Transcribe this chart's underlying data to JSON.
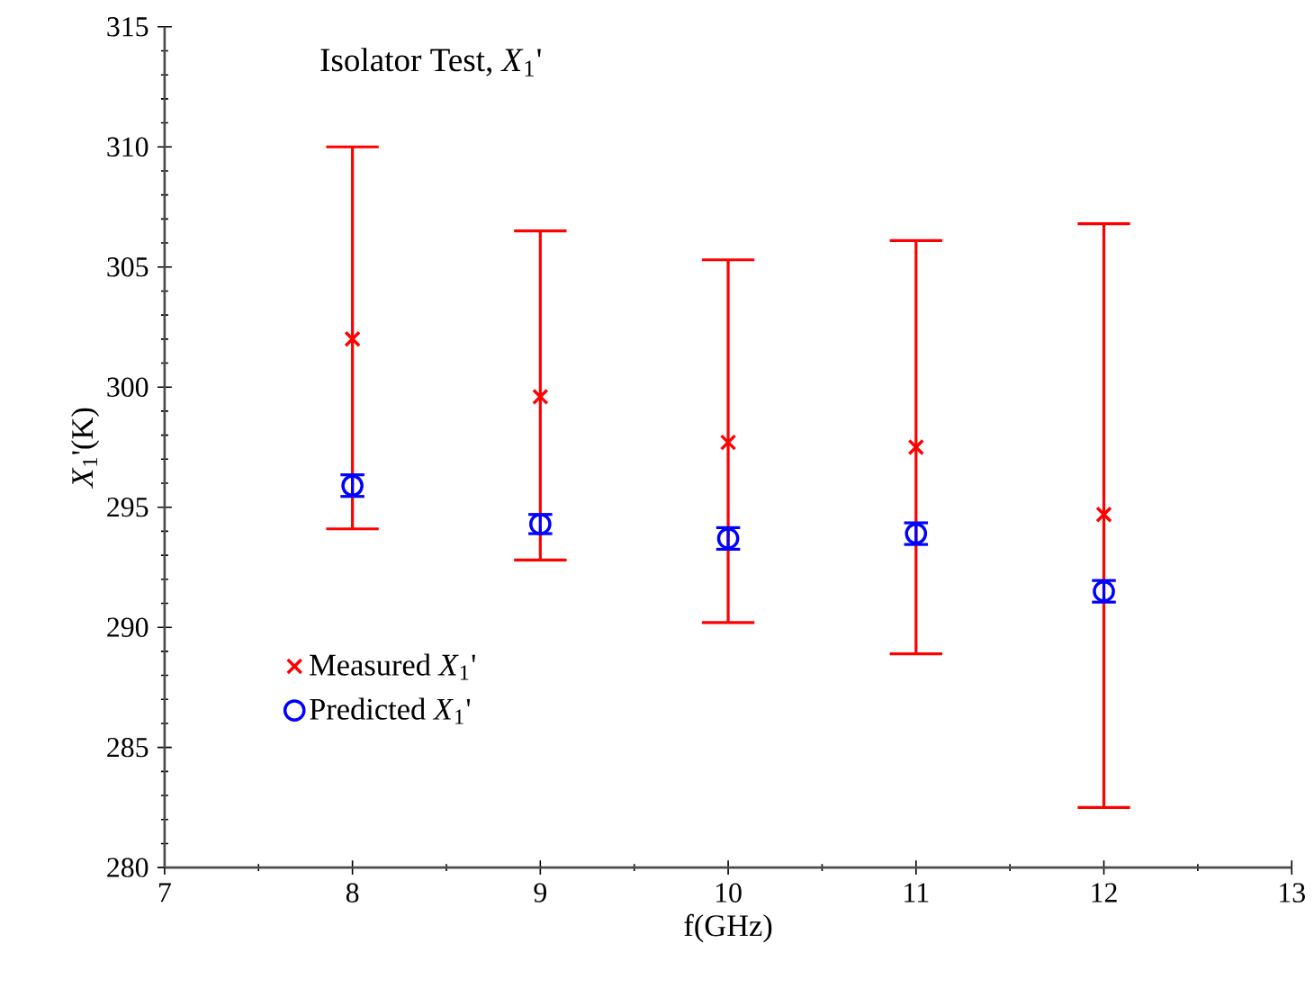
{
  "chart_data": {
    "type": "scatter",
    "title": "Isolator Test, *X*$_{1}$'",
    "xlabel": "f(GHz)",
    "ylabel": "*X*$_{1}$'(K)",
    "x": [
      8,
      9,
      10,
      11,
      12
    ],
    "series": [
      {
        "name": "Measured *X*$_{1}$'",
        "color": "#ff0000",
        "marker": "cross",
        "values": [
          302.0,
          299.6,
          297.7,
          297.5,
          294.7
        ],
        "errors": [
          [
            294.1,
            310.0
          ],
          [
            292.8,
            306.5
          ],
          [
            290.2,
            305.3
          ],
          [
            288.9,
            306.1
          ],
          [
            282.5,
            306.8
          ]
        ]
      },
      {
        "name": "Predicted *X*$_{1}$'",
        "color": "#0000ff",
        "marker": "circle",
        "values": [
          295.9,
          294.3,
          293.7,
          293.9,
          291.5
        ],
        "errors": [
          0.45,
          0.4,
          0.45,
          0.45,
          0.45
        ]
      }
    ],
    "xlim": [
      7,
      13
    ],
    "ylim": [
      280,
      315
    ],
    "xticks": [
      7,
      8,
      9,
      10,
      11,
      12,
      13
    ],
    "yticks": [
      280,
      285,
      290,
      295,
      300,
      305,
      310,
      315
    ],
    "legend": "bottom left",
    "grid": false
  }
}
